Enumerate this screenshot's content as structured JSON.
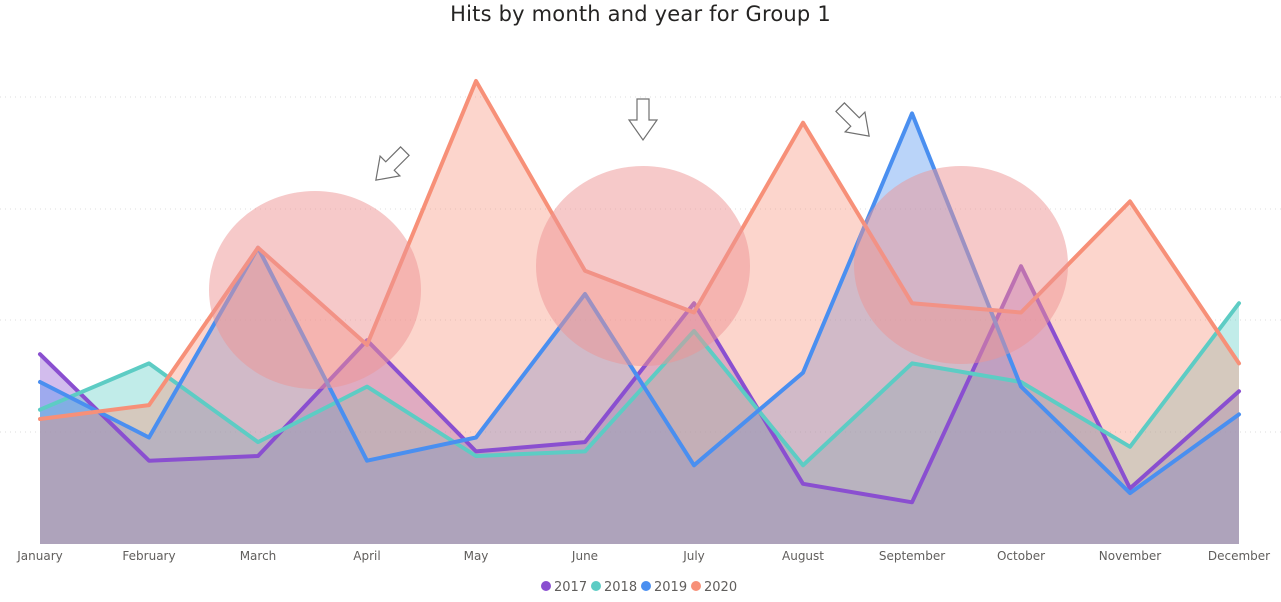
{
  "chart_data": {
    "type": "area",
    "title": "Hits by month and year for Group 1",
    "xlabel": "",
    "ylabel": "",
    "ylim": [
      0,
      100
    ],
    "grid": true,
    "y_axis_labels_visible": false,
    "legend_position": "bottom-center",
    "categories": [
      "January",
      "February",
      "March",
      "April",
      "May",
      "June",
      "July",
      "August",
      "September",
      "October",
      "November",
      "December"
    ],
    "series": [
      {
        "name": "2017",
        "color": "#8a4fd0",
        "values": [
          41,
          18,
          19,
          44,
          20,
          22,
          52,
          13,
          9,
          60,
          12,
          33
        ]
      },
      {
        "name": "2018",
        "color": "#5dccc4",
        "values": [
          29,
          39,
          22,
          34,
          19,
          20,
          46,
          17,
          39,
          35,
          21,
          52
        ]
      },
      {
        "name": "2019",
        "color": "#4a8ff0",
        "values": [
          35,
          23,
          64,
          18,
          23,
          54,
          17,
          37,
          93,
          34,
          11,
          28
        ]
      },
      {
        "name": "2020",
        "color": "#f79078",
        "values": [
          27,
          30,
          64,
          43,
          100,
          59,
          50,
          91,
          52,
          50,
          74,
          39
        ]
      }
    ],
    "annotations": [
      {
        "type": "circle",
        "color": "#ee9494",
        "center_x": "Between March and April",
        "center_y_value": 46
      },
      {
        "type": "circle",
        "color": "#ee9494",
        "center_x": "Between June and July",
        "center_y_value": 50
      },
      {
        "type": "circle",
        "color": "#ee9494",
        "center_x": "Between September and October",
        "center_y_value": 50
      },
      {
        "type": "arrow",
        "pointing": "down-left"
      },
      {
        "type": "arrow",
        "pointing": "down"
      },
      {
        "type": "arrow",
        "pointing": "down-right"
      }
    ]
  }
}
